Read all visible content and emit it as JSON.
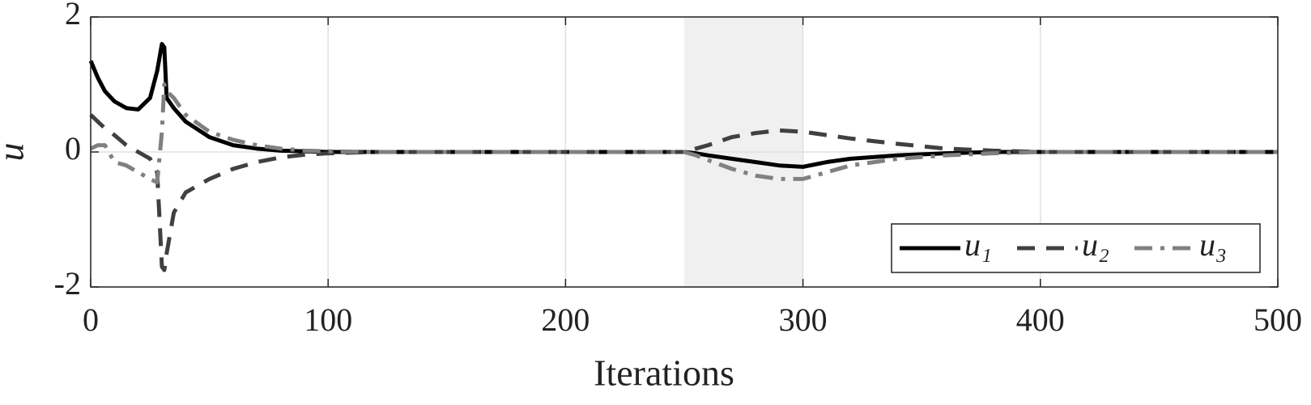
{
  "chart_data": {
    "type": "line",
    "xlabel": "Iterations",
    "ylabel": "u",
    "x": [
      0,
      3,
      6,
      10,
      15,
      20,
      25,
      28,
      30,
      31,
      32,
      35,
      40,
      50,
      60,
      70,
      80,
      90,
      100,
      120,
      250,
      255,
      260,
      270,
      280,
      290,
      300,
      310,
      320,
      340,
      360,
      380,
      400,
      500
    ],
    "series": [
      {
        "name": "u₁",
        "color": "#000000",
        "dash": "solid",
        "values": [
          1.35,
          1.1,
          0.9,
          0.75,
          0.65,
          0.63,
          0.8,
          1.2,
          1.6,
          1.55,
          0.8,
          0.65,
          0.45,
          0.22,
          0.1,
          0.05,
          0.02,
          0.01,
          0,
          0,
          0,
          -0.02,
          -0.05,
          -0.1,
          -0.15,
          -0.2,
          -0.22,
          -0.15,
          -0.1,
          -0.05,
          -0.02,
          0,
          0,
          0
        ]
      },
      {
        "name": "u₂",
        "color": "#404040",
        "dash": "dashed",
        "values": [
          0.55,
          0.45,
          0.35,
          0.25,
          0.1,
          0,
          -0.1,
          -0.3,
          -1.7,
          -1.75,
          -1.5,
          -0.9,
          -0.6,
          -0.4,
          -0.25,
          -0.15,
          -0.08,
          -0.04,
          -0.02,
          0,
          0,
          0.05,
          0.1,
          0.22,
          0.28,
          0.32,
          0.3,
          0.25,
          0.2,
          0.12,
          0.05,
          0.02,
          0,
          0
        ]
      },
      {
        "name": "u₃",
        "color": "#808080",
        "dash": "dashdot",
        "values": [
          0.05,
          0.1,
          0.1,
          -0.15,
          -0.2,
          -0.3,
          -0.4,
          -0.45,
          0.3,
          1.0,
          0.9,
          0.8,
          0.55,
          0.3,
          0.18,
          0.1,
          0.05,
          0.02,
          0.01,
          0,
          0,
          -0.05,
          -0.12,
          -0.25,
          -0.35,
          -0.4,
          -0.4,
          -0.3,
          -0.2,
          -0.1,
          -0.05,
          -0.02,
          0,
          0
        ]
      }
    ],
    "highlight": [
      250,
      300
    ],
    "highlight_color": "#f0f0f0",
    "xlim": [
      0,
      500
    ],
    "xticks": [
      0,
      100,
      200,
      300,
      400,
      500
    ],
    "ylim": [
      -2,
      2
    ],
    "yticks": [
      -2,
      0,
      2
    ],
    "grid": true,
    "legend": "lower right"
  }
}
